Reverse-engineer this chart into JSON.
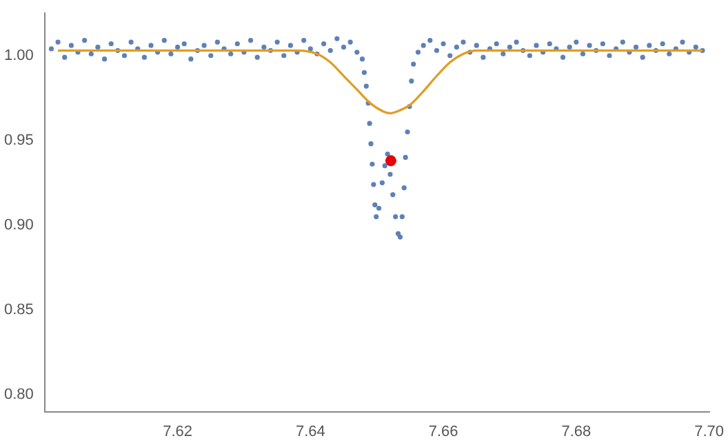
{
  "chart_data": {
    "type": "scatter",
    "xlim": [
      7.6,
      7.7
    ],
    "ylim": [
      0.79,
      1.025
    ],
    "xticks": [
      7.62,
      7.64,
      7.66,
      7.68,
      {
        "value": 7.7,
        "label": "7.70"
      }
    ],
    "yticks": [
      {
        "value": 0.8,
        "label": "0.80"
      },
      0.85,
      {
        "value": 0.9,
        "label": "0.90"
      },
      0.95,
      {
        "value": 1.0,
        "label": "1.00"
      }
    ],
    "series": [
      {
        "marker": "circle",
        "color": "#5e81b5",
        "x": [
          7.601,
          7.602,
          7.603,
          7.604,
          7.605,
          7.606,
          7.607,
          7.608,
          7.609,
          7.61,
          7.611,
          7.612,
          7.613,
          7.614,
          7.615,
          7.616,
          7.617,
          7.618,
          7.619,
          7.62,
          7.621,
          7.622,
          7.623,
          7.624,
          7.625,
          7.626,
          7.627,
          7.628,
          7.629,
          7.63,
          7.631,
          7.632,
          7.633,
          7.634,
          7.635,
          7.636,
          7.637,
          7.638,
          7.639,
          7.64,
          7.641,
          7.642,
          7.643,
          7.644,
          7.645,
          7.646,
          7.647,
          7.6478,
          7.6481,
          7.6484,
          7.6487,
          7.6489,
          7.6491,
          7.6493,
          7.6495,
          7.6497,
          7.6499,
          7.6503,
          7.6508,
          7.6512,
          7.6516,
          7.652,
          7.6524,
          7.6528,
          7.6532,
          7.6535,
          7.6538,
          7.6541,
          7.6543,
          7.6546,
          7.6549,
          7.6552,
          7.6555,
          7.6562,
          7.657,
          7.658,
          7.659,
          7.66,
          7.661,
          7.662,
          7.663,
          7.664,
          7.665,
          7.666,
          7.667,
          7.668,
          7.669,
          7.67,
          7.671,
          7.672,
          7.673,
          7.674,
          7.675,
          7.676,
          7.677,
          7.678,
          7.679,
          7.68,
          7.681,
          7.682,
          7.683,
          7.684,
          7.685,
          7.686,
          7.687,
          7.688,
          7.689,
          7.69,
          7.691,
          7.692,
          7.693,
          7.694,
          7.695,
          7.696,
          7.697,
          7.698,
          7.699
        ],
        "values": [
          1.004,
          1.008,
          0.999,
          1.006,
          1.002,
          1.009,
          1.001,
          1.005,
          0.998,
          1.007,
          1.003,
          1.0,
          1.008,
          1.004,
          0.999,
          1.006,
          1.002,
          1.009,
          1.001,
          1.005,
          1.007,
          0.998,
          1.003,
          1.006,
          1.0,
          1.008,
          1.004,
          1.001,
          1.007,
          1.002,
          1.009,
          0.999,
          1.005,
          1.003,
          1.008,
          1.0,
          1.006,
          1.002,
          1.009,
          1.004,
          1.001,
          1.007,
          1.003,
          1.01,
          1.005,
          1.008,
          1.002,
          0.998,
          0.99,
          0.982,
          0.972,
          0.96,
          0.948,
          0.936,
          0.924,
          0.912,
          0.905,
          0.91,
          0.925,
          0.935,
          0.942,
          0.93,
          0.918,
          0.905,
          0.895,
          0.893,
          0.905,
          0.922,
          0.94,
          0.955,
          0.97,
          0.985,
          0.995,
          1.002,
          1.006,
          1.009,
          1.003,
          1.007,
          1.0,
          1.005,
          1.008,
          1.002,
          1.006,
          0.999,
          1.004,
          1.007,
          1.001,
          1.005,
          1.008,
          1.003,
          1.0,
          1.006,
          1.002,
          1.007,
          1.004,
          0.999,
          1.005,
          1.008,
          1.001,
          1.006,
          1.003,
          1.007,
          1.0,
          1.004,
          1.008,
          1.002,
          1.005,
          0.999,
          1.006,
          1.003,
          1.007,
          1.001,
          1.004,
          1.008,
          1.002,
          1.005,
          1.003
        ]
      },
      {
        "type": "line",
        "marker": "none",
        "color": "#e19c24",
        "x": [
          7.602,
          7.61,
          7.62,
          7.63,
          7.638,
          7.641,
          7.643,
          7.645,
          7.647,
          7.649,
          7.651,
          7.652,
          7.653,
          7.655,
          7.657,
          7.659,
          7.661,
          7.663,
          7.665,
          7.675,
          7.685,
          7.699
        ],
        "values": [
          1.003,
          1.003,
          1.003,
          1.003,
          1.003,
          1.001,
          0.996,
          0.988,
          0.98,
          0.972,
          0.967,
          0.966,
          0.967,
          0.971,
          0.979,
          0.988,
          0.996,
          1.001,
          1.003,
          1.003,
          1.003,
          1.003
        ]
      },
      {
        "marker": "circle",
        "color": "#e8000b",
        "x": [
          7.6521
        ],
        "values": [
          0.938
        ]
      }
    ]
  }
}
